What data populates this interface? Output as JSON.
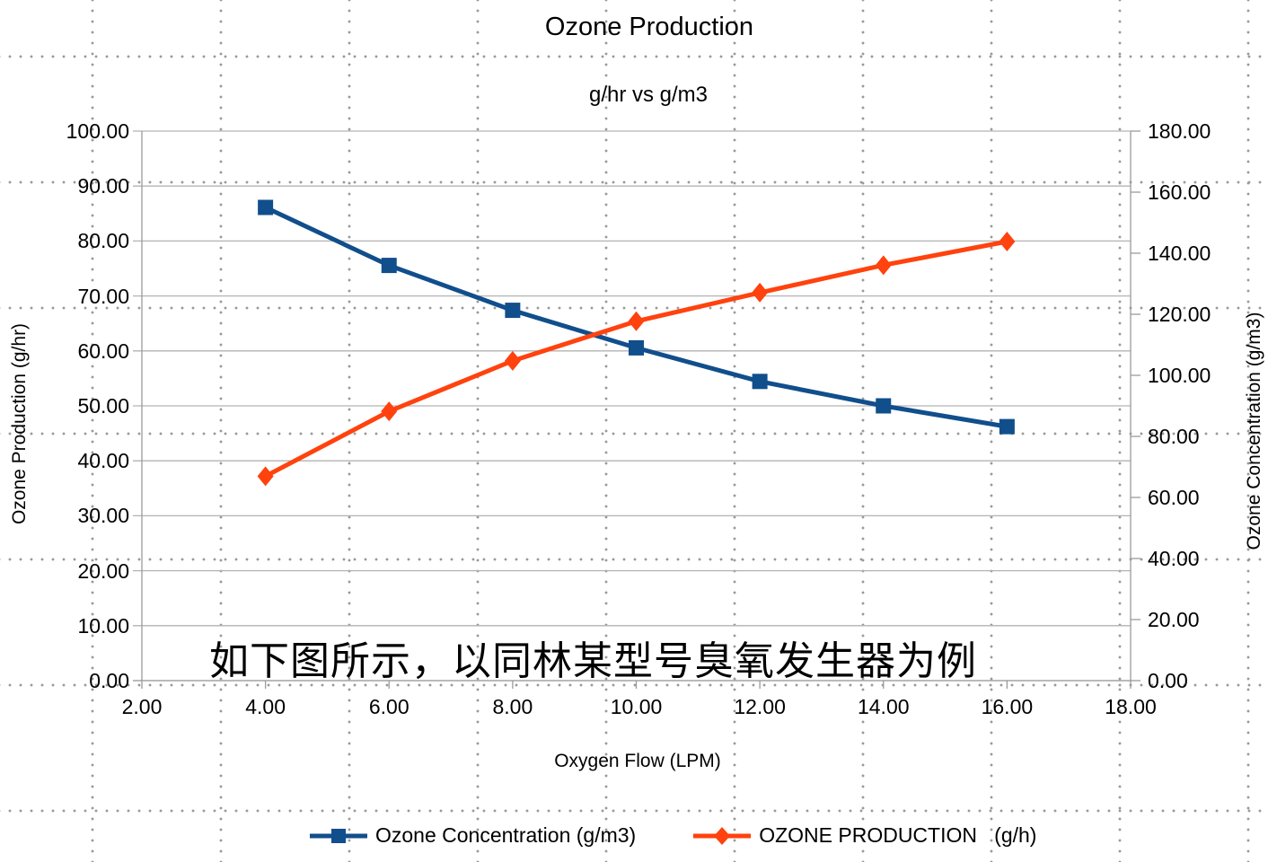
{
  "chart_data": {
    "type": "line",
    "title": "Ozone Production",
    "subtitle": "g/hr vs g/m3",
    "xlabel": "Oxygen Flow (LPM)",
    "ylabel_left": "Ozone Production (g/hr)",
    "ylabel_right": "Ozone Concentration (g/m3)",
    "x": [
      4,
      6,
      8,
      10,
      12,
      14,
      16
    ],
    "series": [
      {
        "name": "Ozone Concentration (g/m3)",
        "axis": "y_right",
        "color": "#114e8c",
        "marker": "square",
        "values": [
          155.0,
          136.0,
          121.3,
          109.0,
          98.0,
          90.0,
          83.2
        ]
      },
      {
        "name": "OZONE PRODUCTION   (g/h)",
        "axis": "y_left",
        "color": "#ff420e",
        "marker": "diamond",
        "values": [
          37.2,
          49.0,
          58.2,
          65.4,
          70.6,
          75.6,
          79.9
        ]
      }
    ],
    "axes": {
      "x": {
        "min": 2,
        "max": 18,
        "step": 2
      },
      "y_left": {
        "min": 0,
        "max": 100,
        "step": 10
      },
      "y_right": {
        "min": 0,
        "max": 180,
        "step": 20
      }
    },
    "tick_format_decimals": 2,
    "grid": "horizontal",
    "legend_position": "bottom"
  },
  "annotation": {
    "text": "如下图所示，以同林某型号臭氧发生器为例"
  },
  "colors": {
    "gridline": "#b3b3b3",
    "axis": "#9b9b9b",
    "background_dots": "#999999",
    "text": "#000000",
    "series_blue": "#114e8c",
    "series_orange": "#ff420e"
  }
}
